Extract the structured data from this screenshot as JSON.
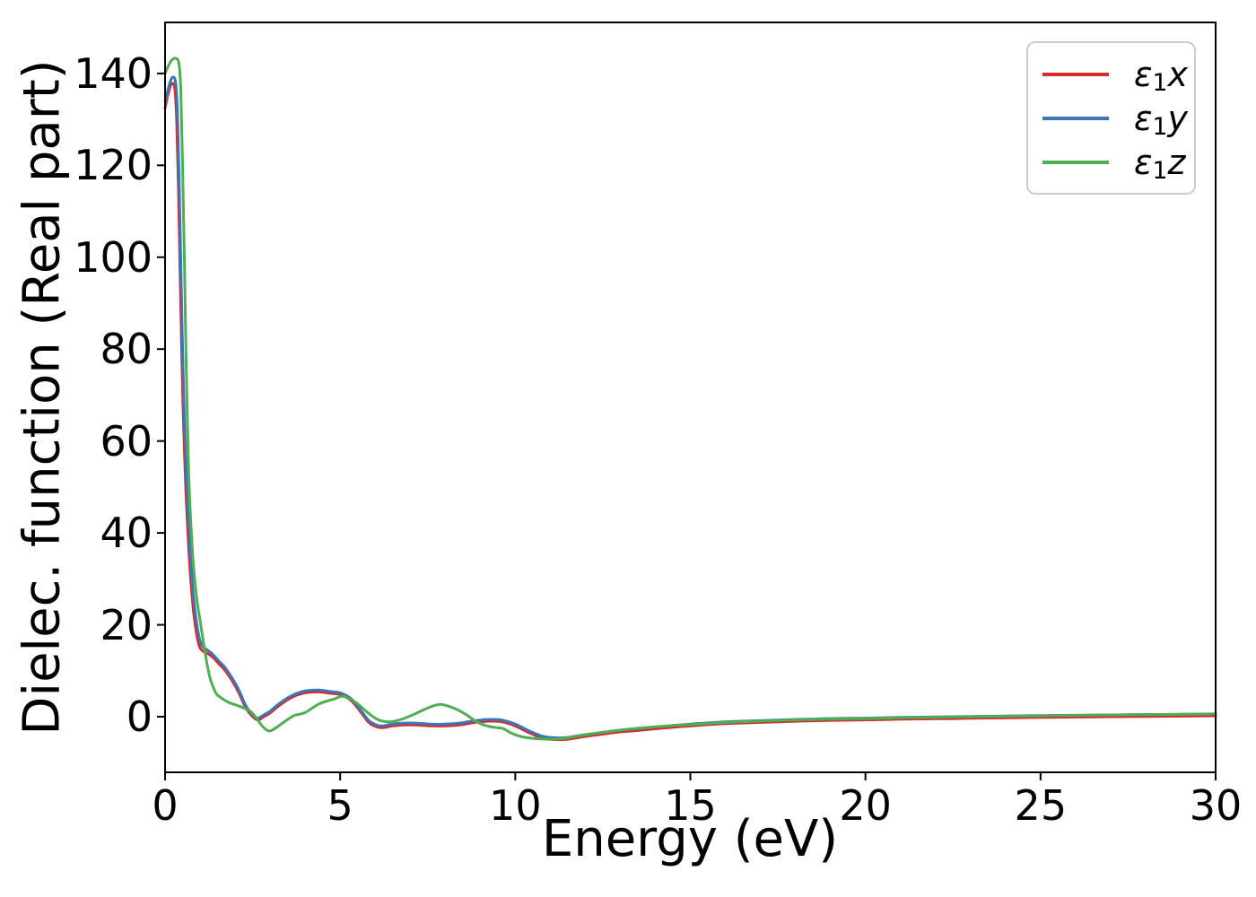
{
  "chart_data": {
    "type": "line",
    "title": "",
    "xlabel": "Energy (eV)",
    "ylabel": "Dielec. function (Real part)",
    "xlim": [
      0,
      30
    ],
    "ylim": [
      -12.1,
      151.1
    ],
    "xticks": [
      0,
      5,
      10,
      15,
      20,
      25,
      30
    ],
    "yticks": [
      0,
      20,
      40,
      60,
      80,
      100,
      120,
      140
    ],
    "grid": false,
    "background": "#ffffff",
    "axis_color": "#000000",
    "legend": {
      "position": "upper right",
      "border_color": "#cccccc"
    },
    "series": [
      {
        "name": "epsilon1-x",
        "label": {
          "symbol": "ε",
          "subscript": "1",
          "component": "x"
        },
        "color": "#d92b2b",
        "x": [
          0,
          0.1,
          0.2,
          0.28,
          0.33,
          0.38,
          0.43,
          0.48,
          0.53,
          0.6,
          0.68,
          0.78,
          0.88,
          0.98,
          1.1,
          1.25,
          1.4,
          1.55,
          1.7,
          1.9,
          2.1,
          2.3,
          2.5,
          2.65,
          2.8,
          3.0,
          3.2,
          3.5,
          3.8,
          4.1,
          4.4,
          4.7,
          5.0,
          5.3,
          5.55,
          5.8,
          6.0,
          6.2,
          6.5,
          6.8,
          7.2,
          7.6,
          8.0,
          8.4,
          8.8,
          9.2,
          9.6,
          10.0,
          10.4,
          10.8,
          11.2,
          11.5,
          12.0,
          12.5,
          13.0,
          13.5,
          14.2,
          15.0,
          16.0,
          17.0,
          18.0,
          19.0,
          20.0,
          21.0,
          22.0,
          23.0,
          24.0,
          25.0,
          26.0,
          27.0,
          28.0,
          29.0,
          30.0
        ],
        "y": [
          132.5,
          136.0,
          137.8,
          136.6,
          130.0,
          116.0,
          96.0,
          78.0,
          63.0,
          48.0,
          36.0,
          25.5,
          19.0,
          15.3,
          14.2,
          13.6,
          12.7,
          11.4,
          10.2,
          8.0,
          5.3,
          2.0,
          0.0,
          -0.7,
          -0.1,
          0.8,
          2.1,
          3.7,
          4.8,
          5.3,
          5.4,
          5.1,
          4.8,
          3.6,
          1.4,
          -1.1,
          -2.1,
          -2.4,
          -2.0,
          -1.8,
          -1.8,
          -2.0,
          -2.0,
          -1.8,
          -1.3,
          -1.0,
          -1.1,
          -2.0,
          -3.5,
          -4.7,
          -5.0,
          -4.9,
          -4.3,
          -3.8,
          -3.3,
          -3.0,
          -2.5,
          -2.0,
          -1.5,
          -1.25,
          -1.0,
          -0.8,
          -0.7,
          -0.55,
          -0.45,
          -0.35,
          -0.25,
          -0.15,
          -0.08,
          0.0,
          0.07,
          0.13,
          0.2
        ]
      },
      {
        "name": "epsilon1-y",
        "label": {
          "symbol": "ε",
          "subscript": "1",
          "component": "y"
        },
        "color": "#3b76b5",
        "x": [
          0,
          0.12,
          0.22,
          0.3,
          0.35,
          0.4,
          0.45,
          0.5,
          0.55,
          0.62,
          0.7,
          0.8,
          0.9,
          1.0,
          1.1,
          1.25,
          1.4,
          1.55,
          1.7,
          1.9,
          2.1,
          2.3,
          2.5,
          2.65,
          2.8,
          3.0,
          3.2,
          3.5,
          3.8,
          4.1,
          4.4,
          4.7,
          5.0,
          5.3,
          5.55,
          5.8,
          6.0,
          6.2,
          6.5,
          6.8,
          7.2,
          7.6,
          8.0,
          8.4,
          8.8,
          9.2,
          9.6,
          10.0,
          10.4,
          10.8,
          11.2,
          11.5,
          12.0,
          12.5,
          13.0,
          13.5,
          14.2,
          15.0,
          16.0,
          17.0,
          18.0,
          19.0,
          20.0,
          21.0,
          22.0,
          23.0,
          24.0,
          25.0,
          26.0,
          27.0,
          28.0,
          29.0,
          30.0
        ],
        "y": [
          134.0,
          137.5,
          139.2,
          138.0,
          132.0,
          118.0,
          98.0,
          80.0,
          65.0,
          50.0,
          38.0,
          27.0,
          20.5,
          16.5,
          15.1,
          14.3,
          13.3,
          12.0,
          10.8,
          8.6,
          5.9,
          2.5,
          0.4,
          -0.3,
          0.3,
          1.2,
          2.5,
          4.1,
          5.2,
          5.7,
          5.8,
          5.5,
          5.2,
          4.0,
          1.8,
          -0.7,
          -1.7,
          -2.0,
          -1.6,
          -1.4,
          -1.4,
          -1.6,
          -1.6,
          -1.4,
          -0.9,
          -0.6,
          -0.7,
          -1.6,
          -3.1,
          -4.3,
          -4.6,
          -4.5,
          -3.9,
          -3.4,
          -2.9,
          -2.6,
          -2.1,
          -1.6,
          -1.1,
          -0.85,
          -0.6,
          -0.4,
          -0.3,
          -0.15,
          -0.05,
          0.05,
          0.15,
          0.25,
          0.32,
          0.4,
          0.47,
          0.53,
          0.6
        ]
      },
      {
        "name": "epsilon1-z",
        "label": {
          "symbol": "ε",
          "subscript": "1",
          "component": "z"
        },
        "color": "#4fae52",
        "x": [
          0,
          0.15,
          0.3,
          0.4,
          0.45,
          0.5,
          0.55,
          0.6,
          0.65,
          0.7,
          0.8,
          0.9,
          1.0,
          1.1,
          1.2,
          1.3,
          1.45,
          1.55,
          1.7,
          1.85,
          2.0,
          2.15,
          2.3,
          2.45,
          2.6,
          2.75,
          2.9,
          3.0,
          3.15,
          3.3,
          3.5,
          3.7,
          4.0,
          4.4,
          4.8,
          5.1,
          5.45,
          5.8,
          6.1,
          6.4,
          6.7,
          7.1,
          7.5,
          7.85,
          8.2,
          8.55,
          8.9,
          9.15,
          9.4,
          9.65,
          9.9,
          10.15,
          10.5,
          11.0,
          11.4,
          11.8,
          12.3,
          12.8,
          13.4,
          14.0,
          15.0,
          16.0,
          17.0,
          18.0,
          19.0,
          20.0,
          21.0,
          22.0,
          23.0,
          24.0,
          25.0,
          26.0,
          27.0,
          28.0,
          29.0,
          30.0
        ],
        "y": [
          140.0,
          142.5,
          143.3,
          142.0,
          136.0,
          120.0,
          100.0,
          78.0,
          60.0,
          48.0,
          34.0,
          26.0,
          21.0,
          16.0,
          11.5,
          8.0,
          5.2,
          4.4,
          3.6,
          3.0,
          2.6,
          2.2,
          1.7,
          1.1,
          -0.2,
          -1.8,
          -2.9,
          -3.1,
          -2.5,
          -1.7,
          -0.6,
          0.3,
          0.9,
          2.8,
          3.8,
          4.4,
          3.1,
          0.8,
          -0.7,
          -1.1,
          -0.7,
          0.5,
          1.9,
          2.7,
          2.0,
          0.7,
          -1.1,
          -1.9,
          -2.3,
          -2.6,
          -3.6,
          -4.3,
          -4.7,
          -4.9,
          -4.7,
          -4.2,
          -3.6,
          -3.1,
          -2.6,
          -2.2,
          -1.7,
          -1.25,
          -0.95,
          -0.7,
          -0.5,
          -0.4,
          -0.25,
          -0.12,
          0.0,
          0.1,
          0.2,
          0.3,
          0.38,
          0.45,
          0.52,
          0.6
        ]
      }
    ]
  }
}
